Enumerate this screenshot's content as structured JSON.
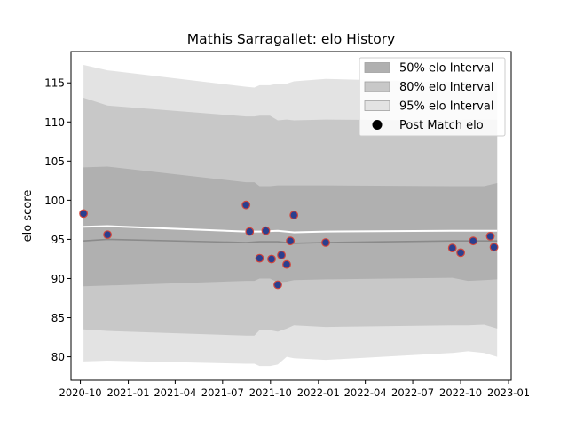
{
  "chart_data": {
    "type": "scatter",
    "title": "Mathis Sarragallet: elo History",
    "xlabel": "",
    "ylabel": "elo score",
    "xlim": [
      "2020-09-13",
      "2023-01-06"
    ],
    "ylim": [
      77,
      119
    ],
    "x_ticks": [
      "2020-10",
      "2021-01",
      "2021-04",
      "2021-07",
      "2021-10",
      "2022-01",
      "2022-04",
      "2022-07",
      "2022-10",
      "2023-01"
    ],
    "y_ticks": [
      80,
      85,
      90,
      95,
      100,
      105,
      110,
      115
    ],
    "grid": false,
    "legend_position": "top-right",
    "legend": [
      {
        "label": "50% elo Interval",
        "kind": "band",
        "color": "#b0b0b0"
      },
      {
        "label": "80% elo Interval",
        "kind": "band",
        "color": "#c8c8c8"
      },
      {
        "label": "95% elo Interval",
        "kind": "band",
        "color": "#e3e3e3"
      },
      {
        "label": "Post Match elo",
        "kind": "marker",
        "color": "#000000"
      }
    ],
    "colors": {
      "band_50": "#b0b0b0",
      "band_80": "#c8c8c8",
      "band_95": "#e3e3e3",
      "mean_line": "#ffffff",
      "median_line": "#8a8a8a",
      "point_fill": "#2a3f8f",
      "point_edge": "#d2463c"
    },
    "series": [
      {
        "name": "95% elo Interval",
        "kind": "band",
        "x": [
          "2020-10-07",
          "2020-11-22",
          "2021-08-15",
          "2021-08-31",
          "2021-09-10",
          "2021-09-30",
          "2021-10-15",
          "2021-11-01",
          "2021-11-15",
          "2022-01-15",
          "2022-09-15",
          "2022-10-15",
          "2022-11-15",
          "2022-12-10"
        ],
        "upper": [
          117.3,
          116.6,
          114.5,
          114.4,
          114.7,
          114.7,
          114.9,
          114.9,
          115.2,
          115.5,
          115.1,
          115.1,
          115.1,
          115.1
        ],
        "lower": [
          79.4,
          79.5,
          79.1,
          79.1,
          78.8,
          78.8,
          79.0,
          80.0,
          79.8,
          79.6,
          80.5,
          80.7,
          80.5,
          80.0
        ]
      },
      {
        "name": "80% elo Interval",
        "kind": "band",
        "x": [
          "2020-10-07",
          "2020-11-22",
          "2021-08-15",
          "2021-08-31",
          "2021-09-10",
          "2021-09-30",
          "2021-10-15",
          "2021-11-01",
          "2021-11-15",
          "2022-01-15",
          "2022-09-15",
          "2022-10-15",
          "2022-11-15",
          "2022-12-10"
        ],
        "upper": [
          113.1,
          112.1,
          110.7,
          110.7,
          110.8,
          110.8,
          110.2,
          110.3,
          110.2,
          110.3,
          110.2,
          110.3,
          110.3,
          110.3
        ],
        "lower": [
          83.5,
          83.3,
          82.7,
          82.7,
          83.4,
          83.4,
          83.2,
          83.6,
          84.0,
          83.8,
          84.0,
          84.0,
          84.1,
          83.6
        ]
      },
      {
        "name": "50% elo Interval",
        "kind": "band",
        "x": [
          "2020-10-07",
          "2020-11-22",
          "2021-08-15",
          "2021-08-31",
          "2021-09-10",
          "2021-09-30",
          "2021-10-15",
          "2021-11-01",
          "2021-11-15",
          "2022-01-15",
          "2022-09-15",
          "2022-10-15",
          "2022-11-15",
          "2022-12-10"
        ],
        "upper": [
          104.2,
          104.3,
          102.3,
          102.3,
          101.8,
          101.8,
          101.9,
          101.9,
          101.9,
          101.9,
          101.8,
          101.8,
          101.8,
          102.2
        ],
        "lower": [
          89.0,
          89.1,
          89.7,
          89.7,
          90.0,
          90.0,
          89.5,
          89.6,
          89.8,
          89.9,
          90.1,
          89.7,
          89.8,
          89.9
        ]
      },
      {
        "name": "Mean",
        "kind": "line",
        "x": [
          "2020-10-07",
          "2020-11-22",
          "2021-08-15",
          "2021-09-10",
          "2021-10-15",
          "2021-11-15",
          "2022-01-15",
          "2022-09-15",
          "2022-12-10"
        ],
        "y": [
          96.6,
          96.7,
          96.0,
          96.0,
          96.1,
          95.9,
          96.0,
          96.1,
          96.1
        ]
      },
      {
        "name": "Median",
        "kind": "line",
        "x": [
          "2020-10-07",
          "2020-11-22",
          "2021-08-15",
          "2021-09-10",
          "2021-10-15",
          "2021-11-15",
          "2022-01-15",
          "2022-09-15",
          "2022-12-10"
        ],
        "y": [
          94.8,
          95.0,
          94.6,
          94.7,
          94.7,
          94.5,
          94.6,
          94.8,
          94.8
        ]
      },
      {
        "name": "Post Match elo",
        "kind": "scatter",
        "x": [
          "2020-10-07",
          "2020-11-22",
          "2021-08-15",
          "2021-08-22",
          "2021-09-10",
          "2021-09-22",
          "2021-10-03",
          "2021-10-15",
          "2021-10-22",
          "2021-11-01",
          "2021-11-08",
          "2021-11-15",
          "2022-01-15",
          "2022-09-15",
          "2022-10-01",
          "2022-10-25",
          "2022-11-27",
          "2022-12-04"
        ],
        "y": [
          98.3,
          95.6,
          99.4,
          96.0,
          92.6,
          96.1,
          92.5,
          89.2,
          93.0,
          91.8,
          94.8,
          98.1,
          94.6,
          93.9,
          93.3,
          94.8,
          95.4,
          94.0
        ]
      }
    ]
  }
}
